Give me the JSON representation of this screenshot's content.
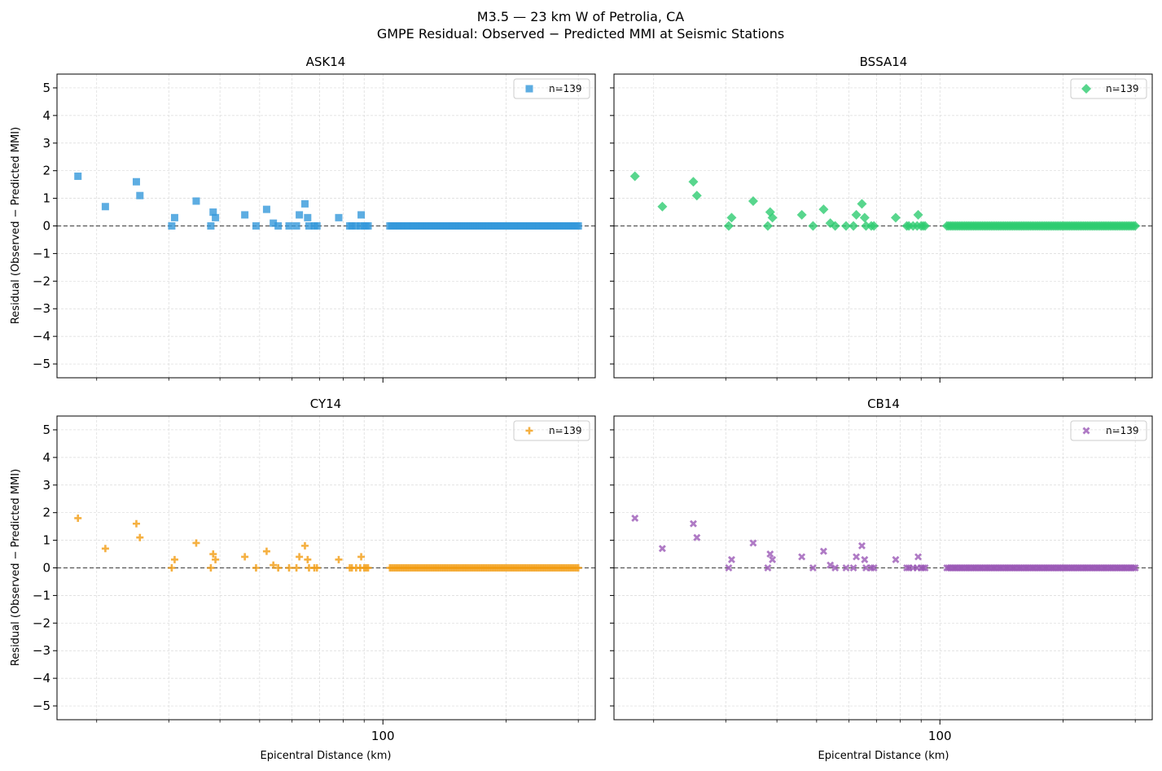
{
  "figure": {
    "title": "M3.5 — 23 km W of Petrolia, CA",
    "subtitle": "GMPE Residual: Observed − Predicted MMI at Seismic Stations"
  },
  "chart_data": [
    {
      "type": "scatter",
      "title": "ASK14",
      "xlabel": "",
      "ylabel": "Residual (Observed − Predicted MMI)",
      "xscale": "log",
      "xlim": [
        16,
        330
      ],
      "ylim": [
        -5.5,
        5.5
      ],
      "xtick_labels": [
        "100"
      ],
      "ytick_labels": [
        "−5",
        "−4",
        "−3",
        "−2",
        "−1",
        "0",
        "1",
        "2",
        "3",
        "4",
        "5"
      ],
      "grid": true,
      "legend_position": "top-right",
      "legend_label": "n=139",
      "marker": "square",
      "color": "#3498db",
      "reference_line_y": 0
    },
    {
      "type": "scatter",
      "title": "BSSA14",
      "xlabel": "",
      "ylabel": "",
      "xscale": "log",
      "xlim": [
        16,
        330
      ],
      "ylim": [
        -5.5,
        5.5
      ],
      "xtick_labels": [
        "100"
      ],
      "ytick_labels": [],
      "grid": true,
      "legend_position": "top-right",
      "legend_label": "n=139",
      "marker": "diamond",
      "color": "#2ecc71",
      "reference_line_y": 0
    },
    {
      "type": "scatter",
      "title": "CY14",
      "xlabel": "Epicentral Distance (km)",
      "ylabel": "Residual (Observed − Predicted MMI)",
      "xscale": "log",
      "xlim": [
        16,
        330
      ],
      "ylim": [
        -5.5,
        5.5
      ],
      "xtick_labels": [
        "100"
      ],
      "ytick_labels": [
        "−5",
        "−4",
        "−3",
        "−2",
        "−1",
        "0",
        "1",
        "2",
        "3",
        "4",
        "5"
      ],
      "grid": true,
      "legend_position": "top-right",
      "legend_label": "n=139",
      "marker": "plus",
      "color": "#f39c12",
      "reference_line_y": 0
    },
    {
      "type": "scatter",
      "title": "CB14",
      "xlabel": "Epicentral Distance (km)",
      "ylabel": "",
      "xscale": "log",
      "xlim": [
        16,
        330
      ],
      "ylim": [
        -5.5,
        5.5
      ],
      "xtick_labels": [
        "100"
      ],
      "ytick_labels": [],
      "grid": true,
      "legend_position": "top-right",
      "legend_label": "n=139",
      "marker": "x",
      "color": "#9b59b6",
      "reference_line_y": 0
    }
  ],
  "shared_points": {
    "x": [
      18,
      21,
      25,
      25.5,
      30.5,
      31,
      35,
      38,
      38.5,
      39,
      46,
      49,
      52,
      54,
      55.5,
      59,
      61.5,
      62.5,
      64.5,
      65.5,
      66,
      68,
      69,
      78,
      83,
      84,
      86,
      88,
      88.5,
      90,
      91,
      92
    ],
    "y": [
      1.8,
      0.7,
      1.6,
      1.1,
      0,
      0.3,
      0.9,
      0,
      0.5,
      0.3,
      0.4,
      0,
      0.6,
      0.1,
      0,
      0,
      0,
      0.4,
      0.8,
      0.3,
      0,
      0,
      0,
      0.3,
      0,
      0,
      0,
      0,
      0.4,
      0,
      0,
      0
    ]
  },
  "zero_band": {
    "count": 107,
    "x_range": [
      104,
      300
    ],
    "y": 0
  }
}
